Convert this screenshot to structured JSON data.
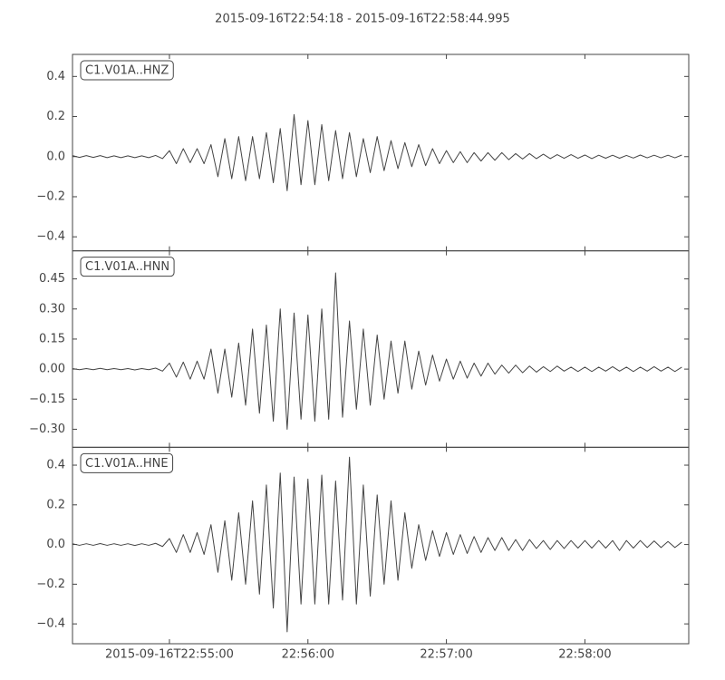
{
  "chart_data": {
    "type": "line",
    "title": "2015-09-16T22:54:18  -  2015-09-16T22:58:44.995",
    "x": [
      "2015-09-16T22:54:18",
      "2015-09-16T22:54:21",
      "2015-09-16T22:54:24",
      "2015-09-16T22:54:27",
      "2015-09-16T22:54:30",
      "2015-09-16T22:54:33",
      "2015-09-16T22:54:36",
      "2015-09-16T22:54:39",
      "2015-09-16T22:54:42",
      "2015-09-16T22:54:45",
      "2015-09-16T22:54:48",
      "2015-09-16T22:54:51",
      "2015-09-16T22:54:54",
      "2015-09-16T22:54:57",
      "2015-09-16T22:55:00",
      "2015-09-16T22:55:03",
      "2015-09-16T22:55:06",
      "2015-09-16T22:55:09",
      "2015-09-16T22:55:12",
      "2015-09-16T22:55:15",
      "2015-09-16T22:55:18",
      "2015-09-16T22:55:21",
      "2015-09-16T22:55:24",
      "2015-09-16T22:55:27",
      "2015-09-16T22:55:30",
      "2015-09-16T22:55:33",
      "2015-09-16T22:55:36",
      "2015-09-16T22:55:39",
      "2015-09-16T22:55:42",
      "2015-09-16T22:55:45",
      "2015-09-16T22:55:48",
      "2015-09-16T22:55:51",
      "2015-09-16T22:55:54",
      "2015-09-16T22:55:57",
      "2015-09-16T22:56:00",
      "2015-09-16T22:56:03",
      "2015-09-16T22:56:06",
      "2015-09-16T22:56:09",
      "2015-09-16T22:56:12",
      "2015-09-16T22:56:15",
      "2015-09-16T22:56:18",
      "2015-09-16T22:56:21",
      "2015-09-16T22:56:24",
      "2015-09-16T22:56:27",
      "2015-09-16T22:56:30",
      "2015-09-16T22:56:33",
      "2015-09-16T22:56:36",
      "2015-09-16T22:56:39",
      "2015-09-16T22:56:42",
      "2015-09-16T22:56:45",
      "2015-09-16T22:56:48",
      "2015-09-16T22:56:51",
      "2015-09-16T22:56:54",
      "2015-09-16T22:56:57",
      "2015-09-16T22:57:00",
      "2015-09-16T22:57:03",
      "2015-09-16T22:57:06",
      "2015-09-16T22:57:09",
      "2015-09-16T22:57:12",
      "2015-09-16T22:57:15",
      "2015-09-16T22:57:18",
      "2015-09-16T22:57:21",
      "2015-09-16T22:57:24",
      "2015-09-16T22:57:27",
      "2015-09-16T22:57:30",
      "2015-09-16T22:57:33",
      "2015-09-16T22:57:36",
      "2015-09-16T22:57:39",
      "2015-09-16T22:57:42",
      "2015-09-16T22:57:45",
      "2015-09-16T22:57:48",
      "2015-09-16T22:57:51",
      "2015-09-16T22:57:54",
      "2015-09-16T22:57:57",
      "2015-09-16T22:58:00",
      "2015-09-16T22:58:03",
      "2015-09-16T22:58:06",
      "2015-09-16T22:58:09",
      "2015-09-16T22:58:12",
      "2015-09-16T22:58:15",
      "2015-09-16T22:58:18",
      "2015-09-16T22:58:21",
      "2015-09-16T22:58:24",
      "2015-09-16T22:58:27",
      "2015-09-16T22:58:30",
      "2015-09-16T22:58:33",
      "2015-09-16T22:58:36",
      "2015-09-16T22:58:39",
      "2015-09-16T22:58:42"
    ],
    "xlim": [
      "2015-09-16T22:54:18",
      "2015-09-16T22:58:44.995"
    ],
    "xticks": [
      "2015-09-16T22:55:00",
      {
        "value": "2015-09-16T22:56:00",
        "label": "22:56:00"
      },
      {
        "value": "2015-09-16T22:57:00",
        "label": "22:57:00"
      },
      {
        "value": "2015-09-16T22:58:00",
        "label": "22:58:00"
      }
    ],
    "series": [
      {
        "name": "C1.V01A..HNZ",
        "color": "#444444",
        "ylim": [
          -0.47,
          0.51
        ],
        "yticks": [
          {
            "value": -0.4,
            "label": "−0.4"
          },
          {
            "value": -0.2,
            "label": "−0.2"
          },
          {
            "value": 0,
            "label": "0.0"
          },
          {
            "value": 0.2,
            "label": "0.2"
          },
          {
            "value": 0.4,
            "label": "0.4"
          }
        ],
        "values": [
          0.005,
          -0.004,
          0.005,
          -0.004,
          0.005,
          -0.005,
          0.004,
          -0.005,
          0.004,
          -0.005,
          0.004,
          -0.005,
          0.006,
          -0.01,
          0.03,
          -0.035,
          0.04,
          -0.03,
          0.04,
          -0.035,
          0.06,
          -0.1,
          0.09,
          -0.11,
          0.1,
          -0.12,
          0.1,
          -0.11,
          0.12,
          -0.13,
          0.14,
          -0.17,
          0.21,
          -0.14,
          0.18,
          -0.14,
          0.16,
          -0.12,
          0.13,
          -0.11,
          0.12,
          -0.1,
          0.09,
          -0.08,
          0.1,
          -0.07,
          0.08,
          -0.06,
          0.07,
          -0.05,
          0.06,
          -0.045,
          0.04,
          -0.035,
          0.03,
          -0.03,
          0.025,
          -0.03,
          0.02,
          -0.022,
          0.02,
          -0.018,
          0.02,
          -0.015,
          0.015,
          -0.012,
          0.015,
          -0.01,
          0.012,
          -0.01,
          0.01,
          -0.008,
          0.01,
          -0.008,
          0.008,
          -0.01,
          0.007,
          -0.008,
          0.007,
          -0.008,
          0.006,
          -0.007,
          0.008,
          -0.006,
          0.007,
          -0.006,
          0.007,
          -0.006,
          0.008
        ]
      },
      {
        "name": "C1.V01A..HNN",
        "color": "#444444",
        "ylim": [
          -0.39,
          0.59
        ],
        "yticks": [
          {
            "value": -0.3,
            "label": "−0.30"
          },
          {
            "value": -0.15,
            "label": "−0.15"
          },
          {
            "value": 0,
            "label": "0.00"
          },
          {
            "value": 0.15,
            "label": "0.15"
          },
          {
            "value": 0.3,
            "label": "0.30"
          },
          {
            "value": 0.45,
            "label": "0.45"
          }
        ],
        "values": [
          0.003,
          -0.003,
          0.003,
          -0.003,
          0.004,
          -0.003,
          0.003,
          -0.003,
          0.003,
          -0.004,
          0.003,
          -0.003,
          0.005,
          -0.01,
          0.03,
          -0.04,
          0.035,
          -0.05,
          0.04,
          -0.05,
          0.1,
          -0.12,
          0.1,
          -0.14,
          0.13,
          -0.18,
          0.2,
          -0.22,
          0.22,
          -0.26,
          0.3,
          -0.3,
          0.28,
          -0.25,
          0.27,
          -0.26,
          0.3,
          -0.25,
          0.48,
          -0.24,
          0.24,
          -0.2,
          0.2,
          -0.18,
          0.17,
          -0.15,
          0.14,
          -0.12,
          0.14,
          -0.1,
          0.09,
          -0.08,
          0.07,
          -0.06,
          0.05,
          -0.05,
          0.04,
          -0.045,
          0.03,
          -0.035,
          0.03,
          -0.025,
          0.02,
          -0.02,
          0.02,
          -0.018,
          0.015,
          -0.015,
          0.012,
          -0.012,
          0.015,
          -0.01,
          0.01,
          -0.012,
          0.01,
          -0.012,
          0.01,
          -0.01,
          0.012,
          -0.01,
          0.01,
          -0.012,
          0.01,
          -0.01,
          0.012,
          -0.01,
          0.01,
          -0.012,
          0.01
        ]
      },
      {
        "name": "C1.V01A..HNE",
        "color": "#444444",
        "ylim": [
          -0.5,
          0.49
        ],
        "yticks": [
          {
            "value": -0.4,
            "label": "−0.4"
          },
          {
            "value": -0.2,
            "label": "−0.2"
          },
          {
            "value": 0,
            "label": "0.0"
          },
          {
            "value": 0.2,
            "label": "0.2"
          },
          {
            "value": 0.4,
            "label": "0.4"
          }
        ],
        "values": [
          0.004,
          -0.004,
          0.004,
          -0.004,
          0.005,
          -0.004,
          0.004,
          -0.004,
          0.004,
          -0.005,
          0.004,
          -0.004,
          0.006,
          -0.01,
          0.03,
          -0.04,
          0.05,
          -0.04,
          0.06,
          -0.05,
          0.1,
          -0.14,
          0.12,
          -0.18,
          0.16,
          -0.2,
          0.22,
          -0.25,
          0.3,
          -0.32,
          0.36,
          -0.44,
          0.34,
          -0.3,
          0.33,
          -0.3,
          0.35,
          -0.3,
          0.32,
          -0.28,
          0.44,
          -0.3,
          0.3,
          -0.26,
          0.25,
          -0.2,
          0.22,
          -0.18,
          0.16,
          -0.12,
          0.1,
          -0.08,
          0.07,
          -0.06,
          0.06,
          -0.05,
          0.05,
          -0.045,
          0.04,
          -0.04,
          0.035,
          -0.03,
          0.035,
          -0.03,
          0.025,
          -0.03,
          0.025,
          -0.02,
          0.02,
          -0.025,
          0.02,
          -0.02,
          0.02,
          -0.018,
          0.02,
          -0.018,
          0.02,
          -0.018,
          0.02,
          -0.03,
          0.02,
          -0.018,
          0.02,
          -0.015,
          0.018,
          -0.015,
          0.015,
          -0.015,
          0.012
        ]
      }
    ]
  }
}
